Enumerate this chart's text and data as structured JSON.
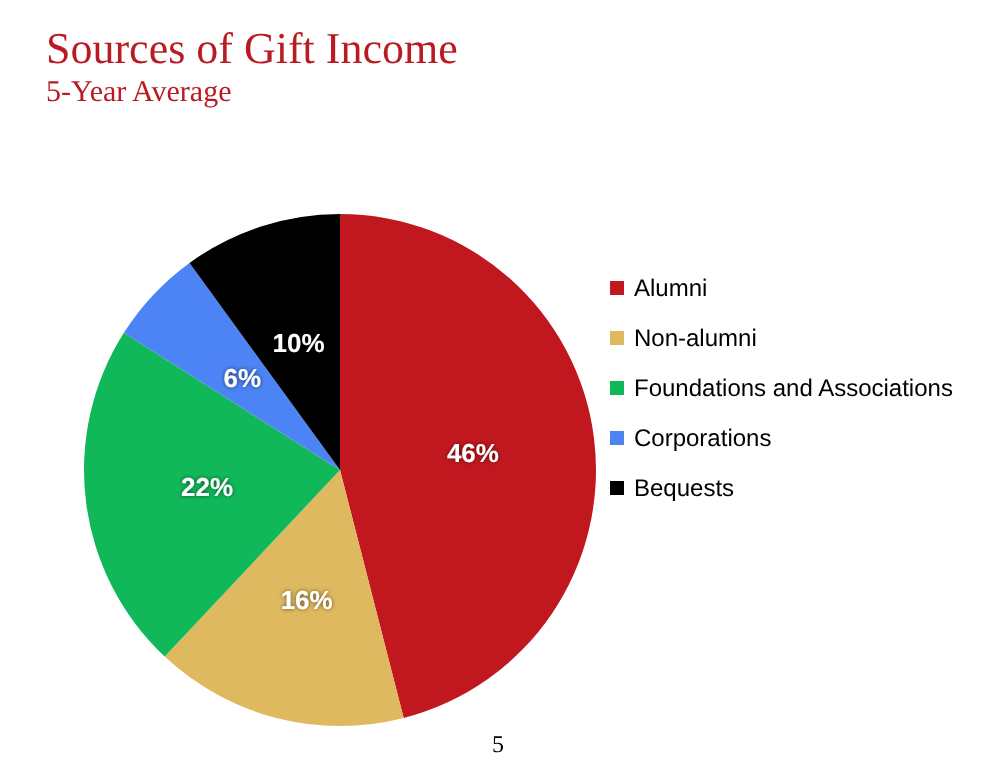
{
  "chart_data": {
    "type": "pie",
    "title": "Sources of Gift Income",
    "subtitle": "5-Year Average",
    "categories": [
      "Alumni",
      "Non-alumni",
      "Foundations and Associations",
      "Corporations",
      "Bequests"
    ],
    "values": [
      46,
      16,
      22,
      6,
      10
    ],
    "colors": [
      "#c1181f",
      "#dfb95f",
      "#11b85a",
      "#4d84f5",
      "#000000"
    ],
    "value_labels": [
      "46%",
      "16%",
      "22%",
      "6%",
      "10%"
    ],
    "legend": "right",
    "annotations": [
      "5"
    ]
  }
}
